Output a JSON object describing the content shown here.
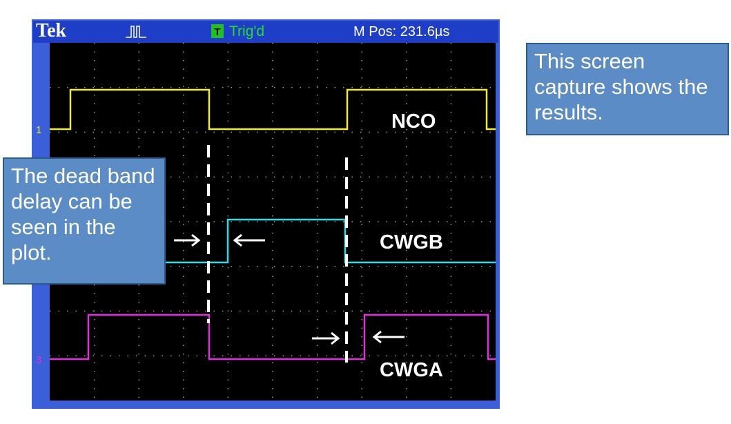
{
  "scope": {
    "brand": "Tek",
    "trigger_icon": "T",
    "trigger_status": "Trig'd",
    "position": "M Pos: 231.6µs",
    "channel_markers": [
      "1",
      "3"
    ],
    "traces": [
      "NCO",
      "CWGB",
      "CWGA"
    ]
  },
  "callouts": {
    "left": "The dead band delay can be seen in the plot.",
    "right": "This screen capture shows the results."
  }
}
